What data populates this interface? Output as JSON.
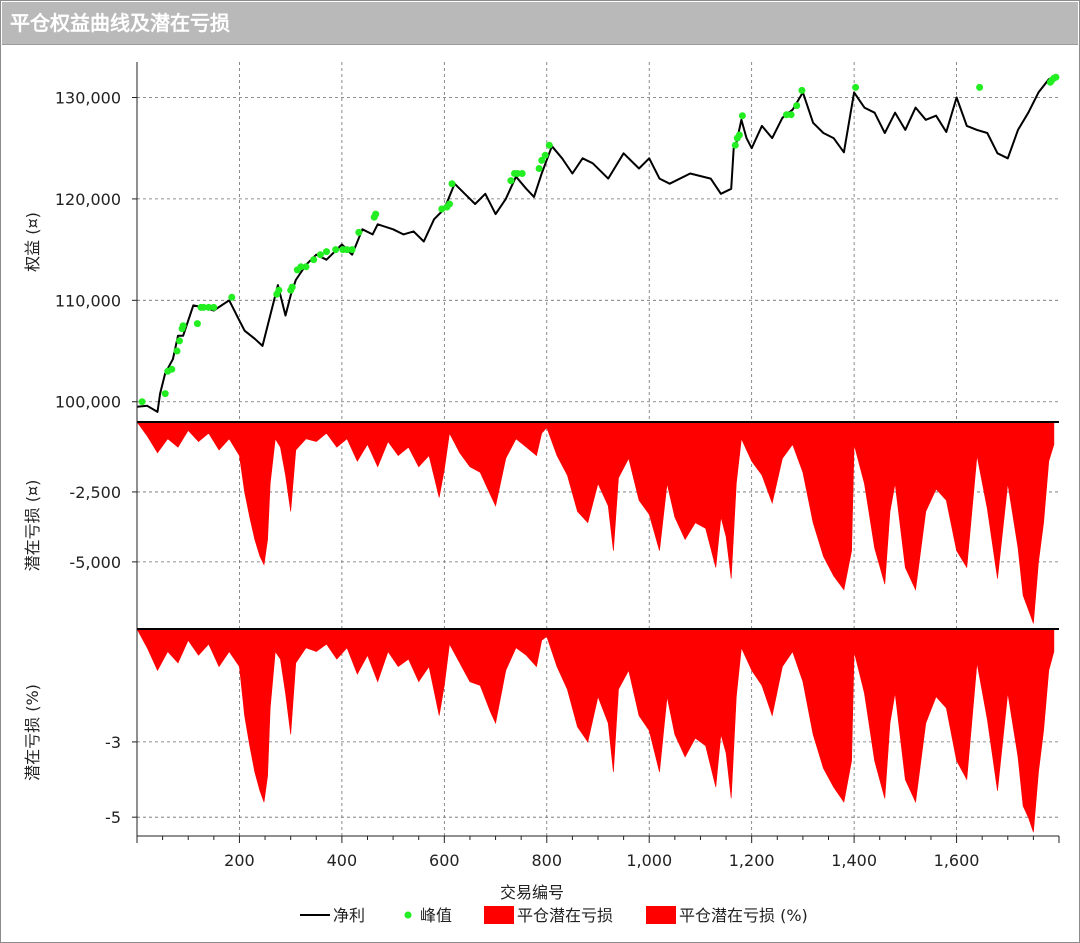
{
  "window": {
    "title": "平仓权益曲线及潜在亏损"
  },
  "chart_data": {
    "type": "line",
    "x_label": "交易编号",
    "x_ticks": [
      "200",
      "400",
      "600",
      "800",
      "1,000",
      "1,200",
      "1,400",
      "1,600"
    ],
    "x_tick_values": [
      200,
      400,
      600,
      800,
      1000,
      1200,
      1400,
      1600
    ],
    "x_range": [
      0,
      1800
    ],
    "grid": true,
    "legend": {
      "placement": "bottom",
      "entries": [
        {
          "label": "净利",
          "kind": "line",
          "color": "#000000"
        },
        {
          "label": "峰值",
          "kind": "dot",
          "color": "#22ee22"
        },
        {
          "label": "平仓潜在亏损",
          "kind": "box",
          "color": "#ff0000"
        },
        {
          "label": "平仓潜在亏损 (%)",
          "kind": "box",
          "color": "#ff0000"
        }
      ]
    },
    "panels": [
      {
        "ylabel": "权益 (¤)",
        "y_range": [
          98000,
          133500
        ],
        "y_ticks": [
          "100,000",
          "110,000",
          "120,000",
          "130,000"
        ],
        "y_tick_values": [
          100000,
          110000,
          120000,
          130000
        ],
        "series": [
          {
            "name": "净利",
            "type": "line",
            "color": "#000000",
            "x": [
              0,
              20,
              40,
              45,
              55,
              70,
              80,
              90,
              110,
              130,
              150,
              180,
              200,
              210,
              230,
              245,
              260,
              275,
              290,
              300,
              310,
              330,
              350,
              370,
              400,
              420,
              440,
              460,
              470,
              500,
              520,
              540,
              560,
              580,
              600,
              620,
              640,
              660,
              680,
              700,
              720,
              740,
              760,
              775,
              790,
              810,
              830,
              850,
              870,
              890,
              920,
              950,
              980,
              1000,
              1020,
              1040,
              1080,
              1120,
              1140,
              1160,
              1165,
              1170,
              1180,
              1190,
              1200,
              1220,
              1240,
              1260,
              1280,
              1300,
              1320,
              1340,
              1360,
              1380,
              1400,
              1420,
              1440,
              1460,
              1480,
              1500,
              1520,
              1540,
              1560,
              1580,
              1600,
              1620,
              1640,
              1660,
              1680,
              1700,
              1720,
              1740,
              1760,
              1780,
              1790
            ],
            "y": [
              99500,
              99600,
              99000,
              100800,
              102800,
              104200,
              106500,
              106500,
              109500,
              109300,
              109000,
              110000,
              108000,
              107000,
              106200,
              105500,
              108500,
              111500,
              108500,
              110500,
              112000,
              113500,
              114500,
              114000,
              115500,
              114500,
              117000,
              116500,
              117500,
              117000,
              116500,
              116800,
              115800,
              118000,
              119000,
              121500,
              120500,
              119500,
              120500,
              118500,
              120000,
              122200,
              121000,
              120200,
              122500,
              125200,
              124000,
              122500,
              124000,
              123500,
              122000,
              124500,
              123000,
              124000,
              122000,
              121500,
              122500,
              122000,
              120500,
              121000,
              125000,
              125500,
              127800,
              126000,
              125000,
              127200,
              126000,
              128000,
              128800,
              130500,
              127500,
              126500,
              126000,
              124600,
              130500,
              129000,
              128500,
              126500,
              128500,
              126800,
              129000,
              127800,
              128200,
              126600,
              130000,
              127200,
              126800,
              126500,
              124500,
              124000,
              126800,
              128500,
              130500,
              131800,
              132000
            ]
          },
          {
            "name": "峰值",
            "type": "scatter",
            "color": "#22ee22",
            "x": [
              10,
              55,
              60,
              68,
              78,
              83,
              88,
              90,
              118,
              125,
              130,
              140,
              150,
              185,
              273,
              277,
              300,
              303,
              313,
              320,
              330,
              345,
              358,
              370,
              388,
              402,
              410,
              420,
              433,
              463,
              466,
              595,
              605,
              610,
              615,
              730,
              737,
              743,
              752,
              785,
              790,
              797,
              805,
              1168,
              1172,
              1176,
              1182,
              1268,
              1277,
              1288,
              1298,
              1403,
              1645,
              1783,
              1786,
              1790,
              1794
            ],
            "y": [
              100000,
              100800,
              103000,
              103200,
              105000,
              106000,
              107200,
              107500,
              107700,
              109300,
              109300,
              109300,
              109300,
              110300,
              110600,
              111000,
              111000,
              111300,
              113000,
              113300,
              113300,
              114000,
              114500,
              114800,
              115000,
              115000,
              115000,
              115000,
              116700,
              118200,
              118500,
              119000,
              119200,
              119500,
              121500,
              121800,
              122500,
              122500,
              122500,
              123000,
              123800,
              124300,
              125300,
              125300,
              126000,
              126300,
              128200,
              128300,
              128300,
              129200,
              130700,
              131000,
              131000,
              131500,
              131700,
              131900,
              132000
            ]
          }
        ]
      },
      {
        "ylabel": "潜在亏损 (¤)",
        "y_range": [
          -7400,
          0
        ],
        "y_ticks": [
          "-2,500",
          "-5,000"
        ],
        "y_tick_values": [
          -2500,
          -5000
        ],
        "series": [
          {
            "name": "平仓潜在亏损",
            "type": "area",
            "color": "#ff0000",
            "x": [
              0,
              20,
              40,
              60,
              80,
              100,
              120,
              140,
              160,
              180,
              200,
              210,
              220,
              230,
              240,
              248,
              255,
              260,
              270,
              280,
              290,
              300,
              310,
              330,
              350,
              370,
              390,
              410,
              430,
              450,
              470,
              490,
              510,
              530,
              550,
              570,
              590,
              600,
              610,
              630,
              650,
              670,
              690,
              700,
              720,
              740,
              760,
              780,
              790,
              800,
              820,
              840,
              860,
              880,
              900,
              920,
              930,
              940,
              960,
              980,
              1000,
              1020,
              1035,
              1050,
              1070,
              1090,
              1110,
              1130,
              1140,
              1150,
              1160,
              1170,
              1180,
              1200,
              1220,
              1240,
              1260,
              1280,
              1300,
              1320,
              1340,
              1360,
              1380,
              1395,
              1400,
              1420,
              1440,
              1460,
              1470,
              1480,
              1500,
              1520,
              1540,
              1560,
              1580,
              1600,
              1620,
              1640,
              1660,
              1680,
              1700,
              1720,
              1730,
              1740,
              1750,
              1760,
              1770,
              1780,
              1790
            ],
            "y": [
              0,
              -500,
              -1100,
              -600,
              -900,
              -300,
              -700,
              -400,
              -1000,
              -600,
              -1200,
              -2500,
              -3400,
              -4200,
              -4800,
              -5100,
              -4200,
              -2200,
              -600,
              -900,
              -1900,
              -3200,
              -1000,
              -600,
              -700,
              -400,
              -900,
              -600,
              -1400,
              -800,
              -1600,
              -700,
              -1200,
              -900,
              -1600,
              -1200,
              -2700,
              -1700,
              -400,
              -1100,
              -1600,
              -1800,
              -2600,
              -3000,
              -1300,
              -600,
              -900,
              -1200,
              -400,
              -200,
              -1200,
              -1900,
              -3200,
              -3600,
              -2200,
              -3000,
              -4600,
              -2000,
              -1300,
              -2800,
              -3300,
              -4600,
              -2200,
              -3400,
              -4200,
              -3600,
              -3800,
              -5200,
              -3400,
              -4100,
              -5600,
              -2200,
              -600,
              -1400,
              -1900,
              -2900,
              -1300,
              -800,
              -1800,
              -3600,
              -4800,
              -5500,
              -6000,
              -4600,
              -800,
              -2200,
              -4500,
              -5800,
              -3200,
              -2200,
              -5200,
              -6000,
              -3200,
              -2400,
              -2800,
              -4600,
              -5200,
              -1200,
              -3100,
              -5600,
              -2200,
              -4500,
              -6200,
              -6700,
              -7200,
              -5000,
              -3600,
              -1400,
              -800
            ]
          }
        ]
      },
      {
        "ylabel": "潜在亏损 (%)",
        "y_range": [
          -5.5,
          0
        ],
        "y_ticks": [
          "-3",
          "-5"
        ],
        "y_tick_values": [
          -3,
          -5
        ],
        "series": [
          {
            "name": "平仓潜在亏损 (%)",
            "type": "area",
            "color": "#ff0000",
            "x": [
              0,
              20,
              40,
              60,
              80,
              100,
              120,
              140,
              160,
              180,
              200,
              210,
              220,
              230,
              240,
              248,
              255,
              260,
              270,
              280,
              290,
              300,
              310,
              330,
              350,
              370,
              390,
              410,
              430,
              450,
              470,
              490,
              510,
              530,
              550,
              570,
              590,
              600,
              610,
              630,
              650,
              670,
              690,
              700,
              720,
              740,
              760,
              780,
              790,
              800,
              820,
              840,
              860,
              880,
              900,
              920,
              930,
              940,
              960,
              980,
              1000,
              1020,
              1035,
              1050,
              1070,
              1090,
              1110,
              1130,
              1140,
              1150,
              1160,
              1170,
              1180,
              1200,
              1220,
              1240,
              1260,
              1280,
              1300,
              1320,
              1340,
              1360,
              1380,
              1395,
              1400,
              1420,
              1440,
              1460,
              1470,
              1480,
              1500,
              1520,
              1540,
              1560,
              1580,
              1600,
              1620,
              1640,
              1660,
              1680,
              1700,
              1720,
              1730,
              1740,
              1750,
              1760,
              1770,
              1780,
              1790
            ],
            "y": [
              0,
              -0.5,
              -1.1,
              -0.6,
              -0.9,
              -0.3,
              -0.7,
              -0.4,
              -1.0,
              -0.6,
              -1.0,
              -2.3,
              -3.1,
              -3.8,
              -4.3,
              -4.6,
              -3.9,
              -2.1,
              -0.6,
              -0.8,
              -1.7,
              -2.8,
              -0.9,
              -0.5,
              -0.6,
              -0.4,
              -0.8,
              -0.5,
              -1.2,
              -0.7,
              -1.4,
              -0.6,
              -1.0,
              -0.8,
              -1.4,
              -1.0,
              -2.3,
              -1.5,
              -0.4,
              -0.9,
              -1.4,
              -1.5,
              -2.2,
              -2.5,
              -1.1,
              -0.5,
              -0.7,
              -1.0,
              -0.3,
              -0.2,
              -1.0,
              -1.6,
              -2.6,
              -3.0,
              -1.8,
              -2.5,
              -3.8,
              -1.6,
              -1.1,
              -2.3,
              -2.7,
              -3.8,
              -1.8,
              -2.8,
              -3.4,
              -2.9,
              -3.1,
              -4.2,
              -2.8,
              -3.3,
              -4.5,
              -1.8,
              -0.5,
              -1.1,
              -1.5,
              -2.3,
              -1.0,
              -0.6,
              -1.4,
              -2.8,
              -3.7,
              -4.2,
              -4.6,
              -3.5,
              -0.6,
              -1.7,
              -3.5,
              -4.5,
              -2.5,
              -1.7,
              -4.0,
              -4.6,
              -2.5,
              -1.8,
              -2.1,
              -3.5,
              -4.0,
              -0.9,
              -2.4,
              -4.3,
              -1.7,
              -3.4,
              -4.7,
              -5.0,
              -5.4,
              -3.8,
              -2.7,
              -1.1,
              -0.6
            ]
          }
        ]
      }
    ]
  }
}
